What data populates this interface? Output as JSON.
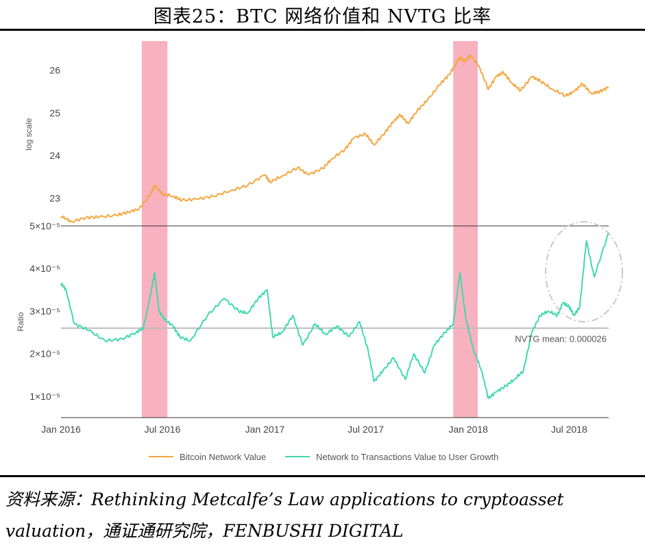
{
  "title": "图表25：BTC 网络价值和 NVTG 比率",
  "source": "资料来源：Rethinking Metcalfe’s Law applications to cryptoasset valuation，通证通研究院，FENBUSHI DIGITAL",
  "chart_data": {
    "type": "line",
    "x_ticks": [
      "Jan 2016",
      "Jul 2016",
      "Jan 2017",
      "Jul 2017",
      "Jan 2018",
      "Jul 2018"
    ],
    "x_range": [
      "2016-01-01",
      "2018-09-10"
    ],
    "legend": {
      "placement": "bottom-center",
      "items": [
        "Bitcoin Network Value",
        "Network to Transactions Value to User Growth"
      ]
    },
    "colors": {
      "network_value": "#f5a742",
      "nvtg": "#3fd9ae",
      "highlight": "#f7a8b8",
      "mean_line": "#bbbbbb",
      "circle": "#c8c8c8"
    },
    "highlight_periods": [
      {
        "start": "2016-05-25",
        "end": "2016-07-10"
      },
      {
        "start": "2017-12-05",
        "end": "2018-01-18"
      }
    ],
    "top_panel": {
      "ylabel": "log scale",
      "y_ticks": [
        "23",
        "24",
        "25",
        "26"
      ],
      "ylim": [
        22.4,
        26.6
      ],
      "series": {
        "name": "Bitcoin Network Value",
        "x": [
          "2016-01-01",
          "2016-01-20",
          "2016-02-15",
          "2016-03-10",
          "2016-04-10",
          "2016-05-01",
          "2016-05-20",
          "2016-06-10",
          "2016-06-17",
          "2016-07-01",
          "2016-07-20",
          "2016-08-05",
          "2016-09-01",
          "2016-10-01",
          "2016-11-01",
          "2016-12-01",
          "2017-01-01",
          "2017-01-10",
          "2017-02-01",
          "2017-03-01",
          "2017-03-20",
          "2017-04-15",
          "2017-05-01",
          "2017-05-25",
          "2017-06-10",
          "2017-07-01",
          "2017-07-16",
          "2017-08-05",
          "2017-08-20",
          "2017-09-01",
          "2017-09-15",
          "2017-10-01",
          "2017-10-20",
          "2017-11-10",
          "2017-11-28",
          "2017-12-10",
          "2017-12-17",
          "2017-12-25",
          "2018-01-05",
          "2018-01-20",
          "2018-02-06",
          "2018-02-20",
          "2018-03-05",
          "2018-03-20",
          "2018-04-05",
          "2018-04-25",
          "2018-05-10",
          "2018-06-01",
          "2018-06-25",
          "2018-07-10",
          "2018-07-25",
          "2018-08-10",
          "2018-08-25",
          "2018-09-10"
        ],
        "y": [
          22.58,
          22.45,
          22.55,
          22.56,
          22.6,
          22.68,
          22.75,
          23.1,
          23.3,
          23.1,
          23.05,
          22.95,
          22.98,
          23.05,
          23.18,
          23.3,
          23.55,
          23.38,
          23.52,
          23.72,
          23.55,
          23.7,
          23.92,
          24.15,
          24.42,
          24.5,
          24.25,
          24.55,
          24.8,
          24.95,
          24.75,
          25.05,
          25.3,
          25.65,
          25.9,
          26.15,
          26.3,
          26.2,
          26.35,
          26.1,
          25.55,
          25.85,
          25.95,
          25.7,
          25.52,
          25.85,
          25.75,
          25.55,
          25.4,
          25.5,
          25.68,
          25.45,
          25.5,
          25.6
        ]
      }
    },
    "bottom_panel": {
      "ylabel": "Ratio",
      "y_ticks": [
        "1×10⁻⁵",
        "2×10⁻⁵",
        "3×10⁻⁵",
        "4×10⁻⁵",
        "5×10⁻⁵"
      ],
      "ylim": [
        5e-06,
        5e-05
      ],
      "mean": 2.6e-05,
      "mean_label": "NVTG mean: 0.000026",
      "series": {
        "name": "Network to Transactions Value to User Growth",
        "x": [
          "2016-01-01",
          "2016-01-10",
          "2016-01-25",
          "2016-02-20",
          "2016-03-20",
          "2016-04-20",
          "2016-05-15",
          "2016-05-28",
          "2016-06-10",
          "2016-06-17",
          "2016-06-25",
          "2016-07-05",
          "2016-07-20",
          "2016-08-01",
          "2016-08-20",
          "2016-09-20",
          "2016-10-20",
          "2016-11-15",
          "2016-12-01",
          "2016-12-20",
          "2017-01-05",
          "2017-01-15",
          "2017-02-01",
          "2017-02-20",
          "2017-03-10",
          "2017-04-01",
          "2017-04-20",
          "2017-05-10",
          "2017-06-01",
          "2017-06-20",
          "2017-07-05",
          "2017-07-16",
          "2017-08-01",
          "2017-08-20",
          "2017-09-10",
          "2017-09-25",
          "2017-10-15",
          "2017-11-01",
          "2017-11-20",
          "2017-12-05",
          "2017-12-17",
          "2017-12-28",
          "2018-01-10",
          "2018-01-25",
          "2018-02-06",
          "2018-02-20",
          "2018-03-10",
          "2018-03-25",
          "2018-04-10",
          "2018-04-25",
          "2018-05-10",
          "2018-05-25",
          "2018-06-10",
          "2018-06-20",
          "2018-07-01",
          "2018-07-10",
          "2018-07-20",
          "2018-08-01",
          "2018-08-15",
          "2018-09-10"
        ],
        "y": [
          3.65e-05,
          3.5e-05,
          2.7e-05,
          2.55e-05,
          2.3e-05,
          2.35e-05,
          2.5e-05,
          2.6e-05,
          3.4e-05,
          3.9e-05,
          3e-05,
          2.8e-05,
          2.65e-05,
          2.4e-05,
          2.3e-05,
          2.9e-05,
          3.3e-05,
          3e-05,
          2.95e-05,
          3.3e-05,
          3.5e-05,
          2.4e-05,
          2.5e-05,
          2.9e-05,
          2.2e-05,
          2.7e-05,
          2.45e-05,
          2.65e-05,
          2.4e-05,
          2.75e-05,
          2.1e-05,
          1.35e-05,
          1.6e-05,
          1.9e-05,
          1.4e-05,
          2e-05,
          1.55e-05,
          2.2e-05,
          2.5e-05,
          2.7e-05,
          3.9e-05,
          2.8e-05,
          2.1e-05,
          1.6e-05,
          9.5e-06,
          1.1e-05,
          1.25e-05,
          1.4e-05,
          1.6e-05,
          2.5e-05,
          2.9e-05,
          3e-05,
          2.9e-05,
          3.2e-05,
          3.1e-05,
          2.9e-05,
          3.1e-05,
          4.65e-05,
          3.8e-05,
          4.85e-05
        ]
      },
      "circle_annotation": true
    }
  }
}
